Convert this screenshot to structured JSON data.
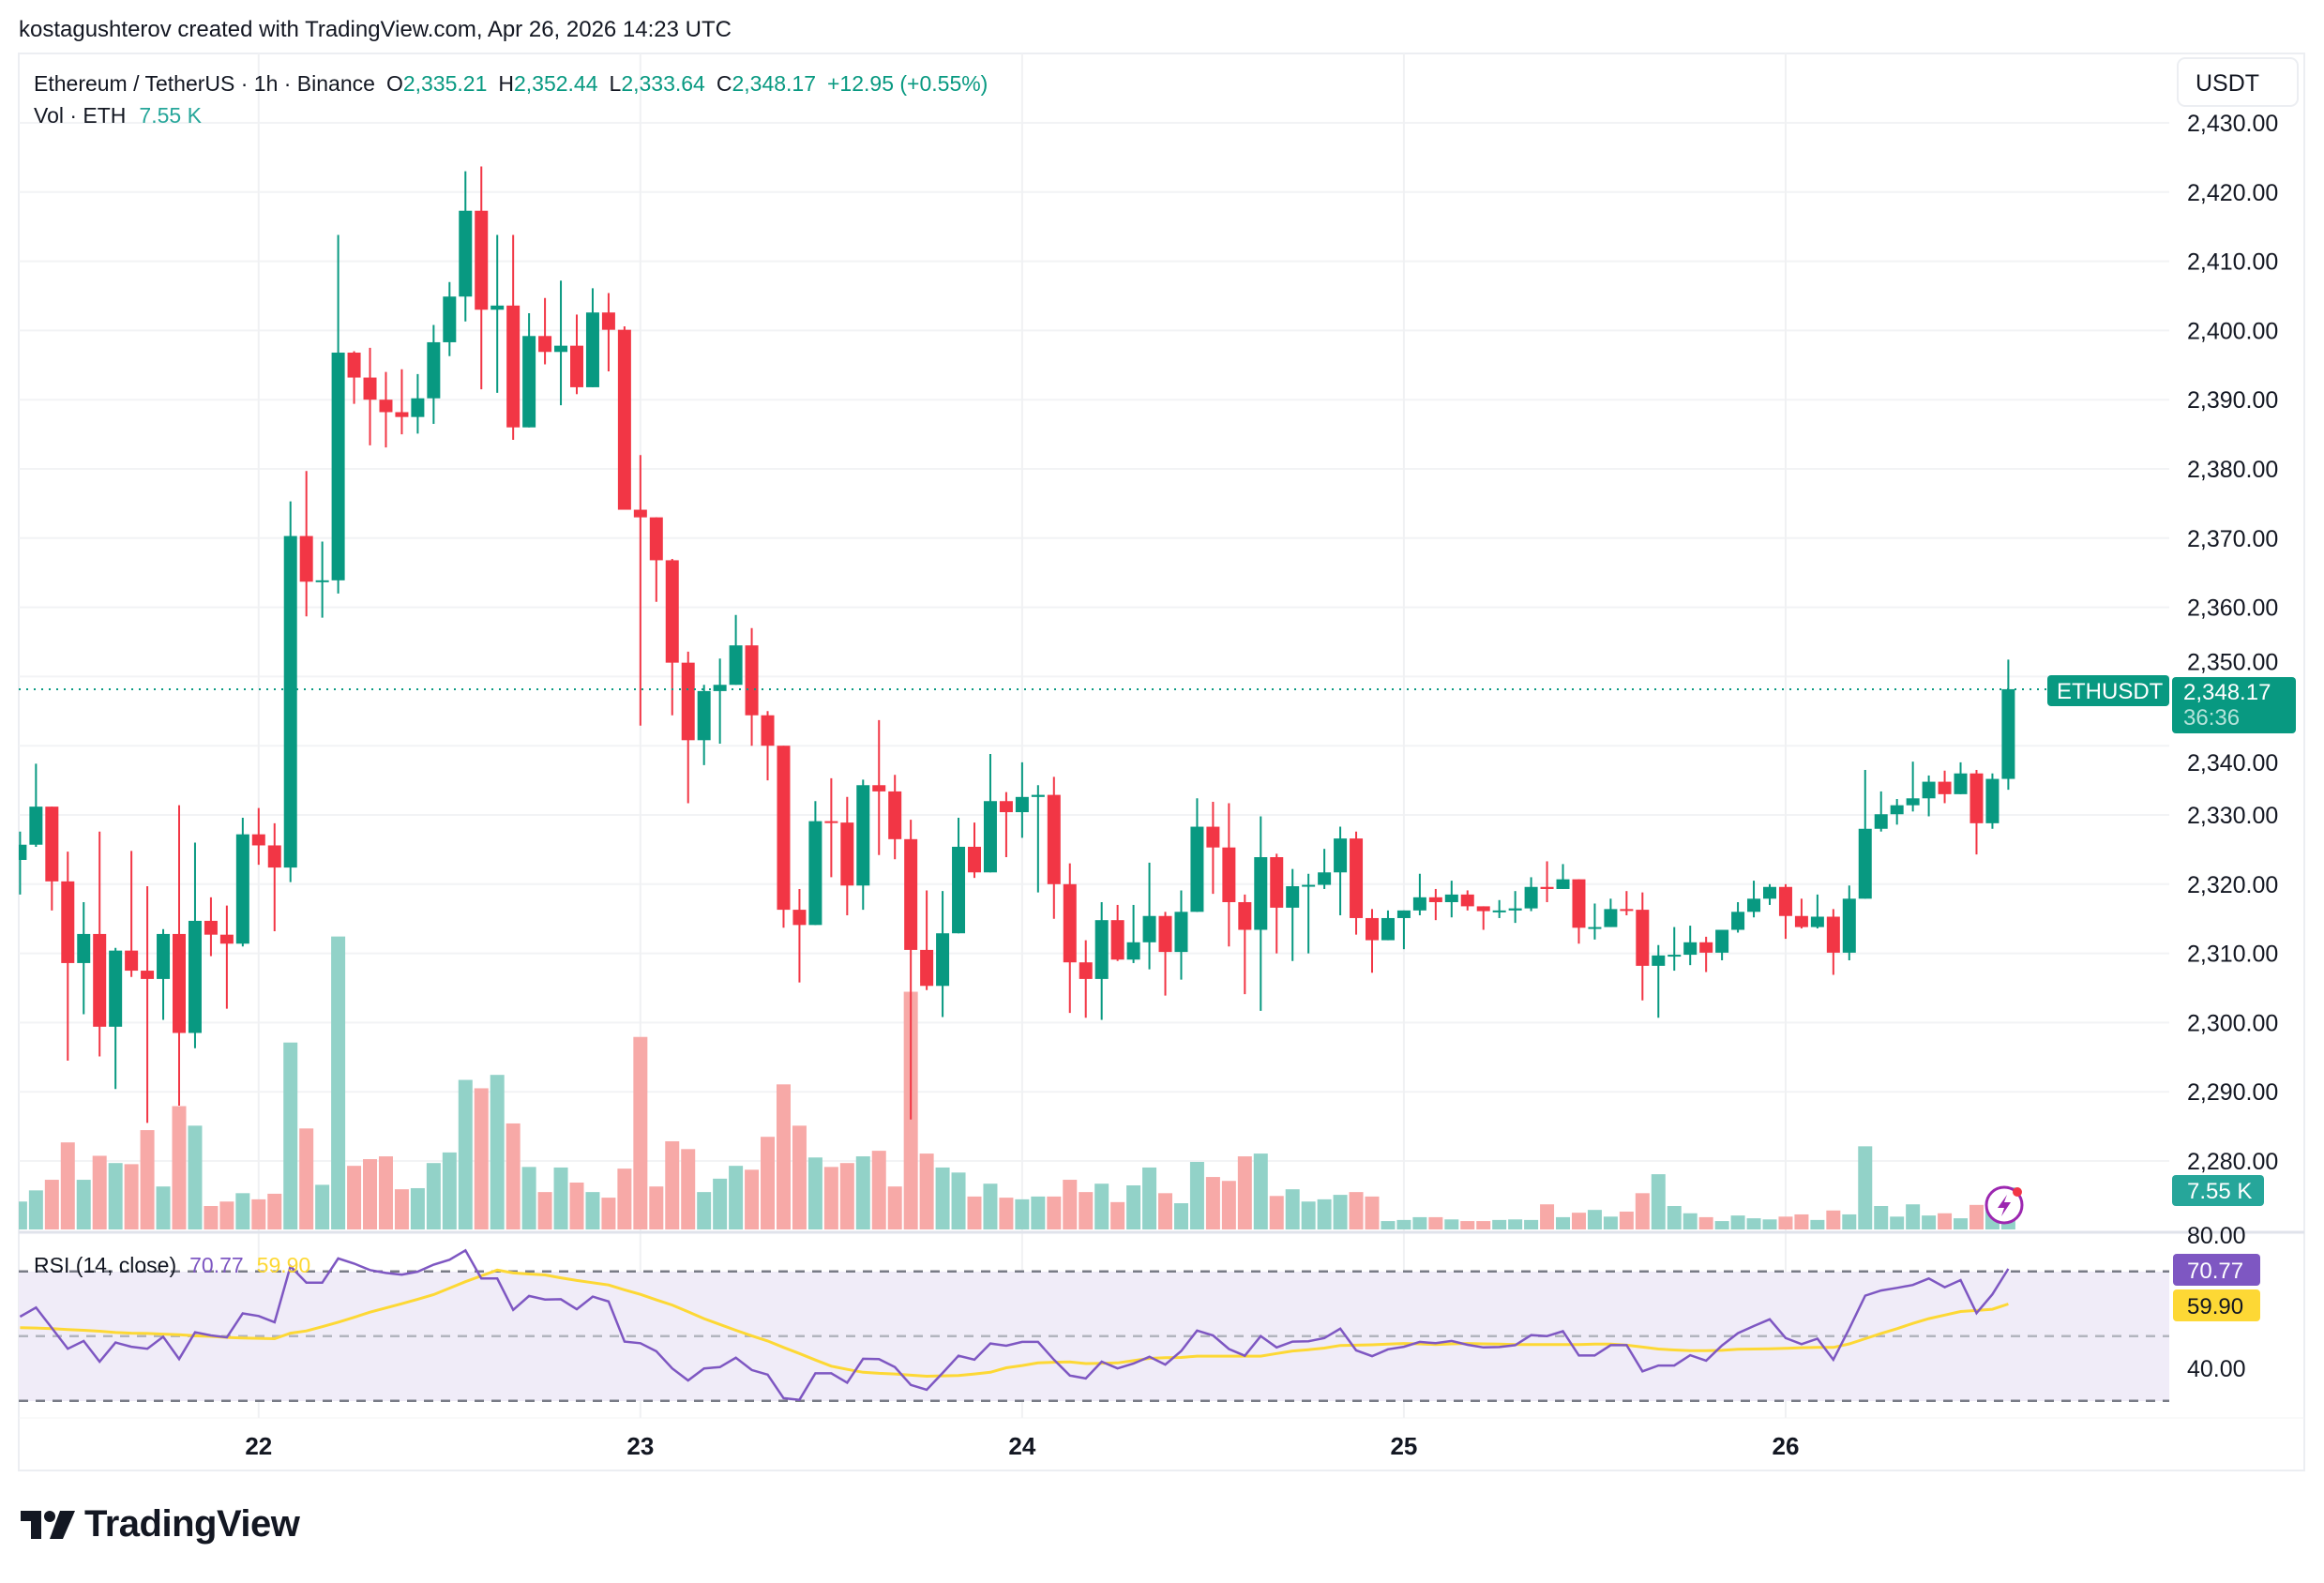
{
  "header": {
    "credit": "kostagushterov created with TradingView.com, Apr 26, 2026 14:23 UTC"
  },
  "legend": {
    "symbol": "Ethereum / TetherUS · 1h · Binance",
    "o_label": "O",
    "o": "2,335.21",
    "h_label": "H",
    "h": "2,352.44",
    "l_label": "L",
    "l": "2,333.64",
    "c_label": "C",
    "c": "2,348.17",
    "change": "+12.95 (+0.55%)",
    "vol_label": "Vol · ETH",
    "vol": "7.55 K"
  },
  "price_axis": {
    "currency": "USDT",
    "labels": [
      "2,430.00",
      "2,420.00",
      "2,410.00",
      "2,400.00",
      "2,390.00",
      "2,380.00",
      "2,370.00",
      "2,360.00",
      "2,350.00",
      "2,340.00",
      "2,330.00",
      "2,320.00",
      "2,310.00",
      "2,300.00",
      "2,290.00",
      "2,280.00"
    ],
    "symbol_tag": "ETHUSDT",
    "last_price": "2,348.17",
    "countdown": "36:36",
    "volume_tag": "7.55 K"
  },
  "rsi": {
    "label": "RSI (14, close)",
    "value": "70.77",
    "ma_value": "59.90",
    "axis_labels": [
      "80.00",
      "40.00"
    ]
  },
  "time_axis": {
    "labels": [
      "22",
      "23",
      "24",
      "25",
      "26"
    ]
  },
  "footer": {
    "logo_text": "TradingView"
  },
  "colors": {
    "up": "#089981",
    "down": "#F23645",
    "vol_up": "#92D2C8",
    "vol_down": "#F7A9A7",
    "rsi": "#7E57C2",
    "rsi_ma": "#FDD835",
    "rsi_band": "#F0ECF8"
  },
  "chart_data": {
    "type": "candlestick",
    "interval": "1h",
    "ylim": [
      2280,
      2430
    ],
    "grid": true,
    "ohlc_fields": [
      "open",
      "high",
      "low",
      "close"
    ],
    "ohlc": [
      [
        2323.5,
        2327.6,
        2318.5,
        2325.7
      ],
      [
        2325.7,
        2337.4,
        2325.4,
        2331.2
      ],
      [
        2331.2,
        2331.2,
        2316.2,
        2320.4
      ],
      [
        2320.4,
        2324.7,
        2294.5,
        2308.6
      ],
      [
        2308.6,
        2317.4,
        2301.2,
        2312.8
      ],
      [
        2312.8,
        2327.6,
        2295.1,
        2299.4
      ],
      [
        2299.4,
        2310.8,
        2290.4,
        2310.4
      ],
      [
        2310.4,
        2324.8,
        2306.6,
        2307.5
      ],
      [
        2307.5,
        2319.7,
        2285.5,
        2306.3
      ],
      [
        2306.3,
        2313.5,
        2300.4,
        2312.8
      ],
      [
        2312.8,
        2331.4,
        2288.0,
        2298.5
      ],
      [
        2298.5,
        2326.0,
        2296.3,
        2314.7
      ],
      [
        2314.7,
        2318.1,
        2309.6,
        2312.7
      ],
      [
        2312.7,
        2316.9,
        2302.0,
        2311.4
      ],
      [
        2311.4,
        2329.6,
        2311.0,
        2327.2
      ],
      [
        2327.2,
        2331.0,
        2322.8,
        2325.6
      ],
      [
        2325.6,
        2328.8,
        2313.2,
        2322.4
      ],
      [
        2322.4,
        2375.3,
        2320.3,
        2370.3
      ],
      [
        2370.3,
        2379.7,
        2358.7,
        2363.7
      ],
      [
        2363.7,
        2369.5,
        2358.5,
        2363.9
      ],
      [
        2363.9,
        2413.8,
        2362.0,
        2396.8
      ],
      [
        2396.8,
        2397.0,
        2389.4,
        2393.2
      ],
      [
        2393.2,
        2397.5,
        2383.4,
        2390.0
      ],
      [
        2390.0,
        2394.0,
        2383.1,
        2388.2
      ],
      [
        2388.2,
        2394.4,
        2385.0,
        2387.5
      ],
      [
        2387.5,
        2393.7,
        2385.1,
        2390.2
      ],
      [
        2390.2,
        2400.8,
        2386.5,
        2398.3
      ],
      [
        2398.3,
        2407.0,
        2396.3,
        2404.9
      ],
      [
        2404.9,
        2423.0,
        2401.3,
        2417.3
      ],
      [
        2417.3,
        2423.7,
        2391.5,
        2403.0
      ],
      [
        2403.0,
        2413.8,
        2391.0,
        2403.6
      ],
      [
        2403.6,
        2413.8,
        2384.2,
        2386.0
      ],
      [
        2386.0,
        2402.5,
        2386.0,
        2399.2
      ],
      [
        2399.2,
        2404.7,
        2395.1,
        2396.9
      ],
      [
        2396.9,
        2407.2,
        2389.2,
        2397.8
      ],
      [
        2397.8,
        2402.3,
        2390.8,
        2391.8
      ],
      [
        2391.8,
        2406.1,
        2391.8,
        2402.6
      ],
      [
        2402.6,
        2405.4,
        2394.1,
        2400.1
      ],
      [
        2400.1,
        2400.6,
        2374.1,
        2374.1
      ],
      [
        2374.1,
        2382.0,
        2342.9,
        2373.0
      ],
      [
        2373.0,
        2373.0,
        2360.8,
        2366.8
      ],
      [
        2366.8,
        2367.0,
        2344.4,
        2352.0
      ],
      [
        2352.0,
        2353.6,
        2331.7,
        2340.8
      ],
      [
        2340.8,
        2348.8,
        2337.2,
        2347.9
      ],
      [
        2347.9,
        2352.6,
        2340.3,
        2348.8
      ],
      [
        2348.8,
        2358.9,
        2348.8,
        2354.5
      ],
      [
        2354.5,
        2357.0,
        2340.0,
        2344.4
      ],
      [
        2344.4,
        2345.0,
        2335.0,
        2340.0
      ],
      [
        2340.0,
        2340.0,
        2313.7,
        2316.3
      ],
      [
        2316.3,
        2319.3,
        2305.8,
        2314.1
      ],
      [
        2314.1,
        2332.0,
        2314.1,
        2329.1
      ],
      [
        2329.1,
        2335.3,
        2321.0,
        2328.9
      ],
      [
        2328.9,
        2332.6,
        2315.5,
        2319.8
      ],
      [
        2319.8,
        2335.1,
        2316.3,
        2334.3
      ],
      [
        2334.3,
        2343.7,
        2324.2,
        2333.4
      ],
      [
        2333.4,
        2335.8,
        2323.6,
        2326.5
      ],
      [
        2326.5,
        2329.3,
        2286.0,
        2310.5
      ],
      [
        2310.5,
        2319.1,
        2304.7,
        2305.3
      ],
      [
        2305.3,
        2319.0,
        2300.8,
        2312.9
      ],
      [
        2312.9,
        2329.6,
        2312.9,
        2325.4
      ],
      [
        2325.4,
        2328.9,
        2320.9,
        2321.7
      ],
      [
        2321.7,
        2338.8,
        2321.7,
        2332.0
      ],
      [
        2332.0,
        2333.3,
        2323.9,
        2330.4
      ],
      [
        2330.4,
        2337.6,
        2326.7,
        2332.6
      ],
      [
        2332.6,
        2334.3,
        2318.8,
        2332.9
      ],
      [
        2332.9,
        2335.5,
        2315.0,
        2320.0
      ],
      [
        2320.0,
        2323.0,
        2301.4,
        2308.7
      ],
      [
        2308.7,
        2311.9,
        2300.7,
        2306.3
      ],
      [
        2306.3,
        2317.4,
        2300.4,
        2314.8
      ],
      [
        2314.8,
        2317.0,
        2308.9,
        2309.1
      ],
      [
        2309.1,
        2317.0,
        2308.6,
        2311.6
      ],
      [
        2311.6,
        2323.1,
        2307.7,
        2315.4
      ],
      [
        2315.4,
        2316.0,
        2303.9,
        2310.2
      ],
      [
        2310.2,
        2319.1,
        2306.2,
        2316.0
      ],
      [
        2316.0,
        2332.4,
        2316.0,
        2328.3
      ],
      [
        2328.3,
        2331.9,
        2318.6,
        2325.3
      ],
      [
        2325.3,
        2331.7,
        2311.0,
        2317.4
      ],
      [
        2317.4,
        2318.5,
        2304.1,
        2313.4
      ],
      [
        2313.4,
        2329.8,
        2301.7,
        2323.9
      ],
      [
        2323.9,
        2324.4,
        2310.0,
        2316.6
      ],
      [
        2316.6,
        2322.2,
        2308.9,
        2319.7
      ],
      [
        2319.7,
        2321.5,
        2310.0,
        2319.9
      ],
      [
        2319.9,
        2325.1,
        2319.3,
        2321.7
      ],
      [
        2321.7,
        2328.3,
        2315.5,
        2326.6
      ],
      [
        2326.6,
        2327.6,
        2312.7,
        2315.1
      ],
      [
        2315.1,
        2316.4,
        2307.2,
        2311.9
      ],
      [
        2311.9,
        2316.2,
        2311.9,
        2315.1
      ],
      [
        2315.1,
        2316.2,
        2310.6,
        2316.2
      ],
      [
        2316.2,
        2321.5,
        2315.5,
        2318.1
      ],
      [
        2318.1,
        2319.3,
        2314.8,
        2317.4
      ],
      [
        2317.4,
        2320.5,
        2315.2,
        2318.5
      ],
      [
        2318.5,
        2319.1,
        2316.2,
        2316.8
      ],
      [
        2316.8,
        2316.8,
        2313.4,
        2316.1
      ],
      [
        2316.1,
        2317.7,
        2315.1,
        2316.2
      ],
      [
        2316.2,
        2319.0,
        2314.4,
        2316.5
      ],
      [
        2316.5,
        2321.0,
        2316.1,
        2319.6
      ],
      [
        2319.6,
        2323.3,
        2317.4,
        2319.3
      ],
      [
        2319.3,
        2322.9,
        2319.3,
        2320.7
      ],
      [
        2320.7,
        2320.7,
        2311.4,
        2313.7
      ],
      [
        2313.7,
        2317.2,
        2312.0,
        2313.8
      ],
      [
        2313.8,
        2317.9,
        2313.8,
        2316.4
      ],
      [
        2316.4,
        2319.0,
        2315.5,
        2316.3
      ],
      [
        2316.3,
        2318.8,
        2303.2,
        2308.2
      ],
      [
        2308.2,
        2311.2,
        2300.7,
        2309.7
      ],
      [
        2309.7,
        2313.8,
        2307.5,
        2309.8
      ],
      [
        2309.8,
        2314.0,
        2308.3,
        2311.6
      ],
      [
        2311.6,
        2312.4,
        2307.3,
        2310.1
      ],
      [
        2310.1,
        2313.4,
        2309.0,
        2313.4
      ],
      [
        2313.4,
        2317.4,
        2313.0,
        2316.0
      ],
      [
        2316.0,
        2320.5,
        2315.2,
        2317.9
      ],
      [
        2317.9,
        2320.0,
        2317.0,
        2319.6
      ],
      [
        2319.6,
        2320.0,
        2312.1,
        2315.4
      ],
      [
        2315.4,
        2317.9,
        2313.6,
        2313.8
      ],
      [
        2313.8,
        2318.5,
        2313.6,
        2315.3
      ],
      [
        2315.3,
        2316.4,
        2306.9,
        2310.1
      ],
      [
        2310.1,
        2319.8,
        2309.0,
        2317.9
      ],
      [
        2317.9,
        2336.5,
        2317.9,
        2328.0
      ],
      [
        2328.0,
        2333.4,
        2327.6,
        2330.1
      ],
      [
        2330.1,
        2332.3,
        2328.6,
        2331.4
      ],
      [
        2331.4,
        2337.7,
        2330.5,
        2332.4
      ],
      [
        2332.4,
        2335.7,
        2329.8,
        2334.8
      ],
      [
        2334.8,
        2336.4,
        2331.7,
        2333.0
      ],
      [
        2333.0,
        2337.6,
        2333.0,
        2336.0
      ],
      [
        2336.0,
        2336.5,
        2324.3,
        2328.8
      ],
      [
        2328.8,
        2336.0,
        2328.0,
        2335.21
      ],
      [
        2335.21,
        2352.44,
        2333.64,
        2348.17
      ]
    ],
    "volume_unit": "K ETH",
    "volume": [
      5.0,
      7.0,
      8.9,
      15.6,
      8.9,
      13.2,
      11.9,
      11.7,
      17.8,
      7.7,
      22.1,
      18.6,
      4.2,
      5.0,
      6.5,
      5.4,
      6.4,
      33.5,
      18.1,
      8.0,
      52.5,
      11.4,
      12.6,
      13.1,
      7.2,
      7.4,
      11.9,
      13.8,
      26.8,
      25.3,
      27.7,
      19.0,
      11.2,
      6.7,
      11.1,
      8.4,
      6.7,
      5.7,
      10.9,
      34.5,
      7.7,
      15.8,
      14.4,
      6.7,
      9.1,
      11.4,
      10.7,
      16.6,
      26.0,
      18.6,
      12.9,
      11.2,
      11.9,
      13.1,
      14.1,
      7.7,
      42.6,
      13.6,
      11.1,
      10.2,
      5.9,
      8.2,
      5.7,
      5.4,
      5.9,
      5.9,
      8.9,
      6.7,
      8.2,
      4.9,
      7.9,
      11.1,
      6.5,
      4.7,
      12.1,
      9.4,
      8.7,
      13.1,
      13.6,
      6.0,
      7.2,
      5.0,
      5.4,
      6.2,
      6.7,
      5.9,
      1.5,
      1.7,
      2.2,
      2.2,
      1.8,
      1.5,
      1.5,
      1.7,
      1.8,
      1.7,
      4.5,
      2.2,
      3.0,
      3.5,
      2.3,
      3.2,
      6.5,
      9.9,
      4.2,
      2.9,
      2.2,
      1.5,
      2.5,
      2.0,
      1.8,
      2.3,
      2.7,
      1.7,
      3.4,
      2.7,
      14.9,
      4.2,
      2.3,
      4.5,
      2.5,
      2.9,
      2.0,
      4.4,
      3.9,
      7.55
    ],
    "rsi_ylim": [
      30,
      80
    ],
    "rsi_levels": [
      70,
      50,
      30
    ],
    "rsi": [
      56.0,
      58.8,
      52.5,
      46.1,
      48.5,
      42.1,
      48.0,
      46.7,
      46.1,
      49.8,
      42.9,
      51.2,
      50.2,
      49.6,
      57.0,
      56.2,
      54.3,
      71.6,
      66.5,
      66.5,
      74.0,
      72.4,
      70.4,
      69.5,
      69.0,
      69.9,
      72.1,
      73.6,
      76.5,
      67.8,
      67.8,
      58.1,
      62.4,
      61.3,
      61.4,
      58.3,
      62.2,
      60.7,
      48.3,
      47.8,
      45.3,
      40.0,
      36.3,
      40.0,
      40.4,
      43.3,
      39.5,
      38.1,
      30.8,
      30.3,
      38.5,
      38.5,
      35.6,
      43.0,
      42.9,
      40.4,
      34.9,
      33.4,
      38.6,
      43.9,
      42.7,
      47.7,
      47.0,
      48.2,
      48.2,
      42.7,
      37.8,
      36.9,
      42.1,
      40.0,
      41.5,
      43.6,
      41.2,
      45.4,
      51.7,
      50.2,
      46.0,
      43.9,
      50.0,
      46.5,
      48.3,
      48.4,
      49.4,
      52.3,
      45.6,
      43.8,
      45.9,
      46.7,
      48.2,
      47.8,
      48.5,
      47.3,
      46.5,
      46.6,
      47.2,
      50.3,
      50.0,
      51.5,
      44.0,
      44.0,
      47.2,
      47.2,
      39.1,
      40.9,
      40.9,
      44.1,
      42.4,
      47.1,
      50.9,
      53.1,
      55.2,
      49.4,
      47.5,
      49.2,
      42.7,
      52.3,
      62.5,
      64.1,
      64.9,
      65.8,
      67.8,
      65.1,
      67.3,
      57.1,
      62.9,
      70.77
    ],
    "rsi_ma": [
      52.6,
      52.5,
      52.3,
      52.0,
      51.8,
      51.5,
      51.1,
      50.9,
      50.8,
      50.6,
      50.4,
      50.1,
      49.9,
      49.6,
      49.4,
      49.3,
      49.2,
      50.9,
      51.6,
      52.9,
      54.3,
      55.8,
      57.4,
      58.7,
      60.0,
      61.4,
      62.8,
      64.8,
      66.8,
      68.6,
      70.4,
      69.5,
      69.2,
      68.9,
      68.0,
      67.2,
      66.5,
      65.8,
      64.3,
      62.9,
      61.2,
      59.6,
      57.5,
      55.4,
      53.6,
      51.8,
      50.1,
      48.5,
      46.5,
      44.6,
      42.6,
      40.7,
      39.7,
      38.8,
      38.5,
      38.3,
      37.9,
      37.6,
      37.7,
      37.8,
      38.3,
      38.8,
      40.2,
      40.9,
      41.7,
      41.9,
      42.0,
      41.5,
      41.6,
      41.7,
      42.4,
      43.1,
      43.3,
      43.4,
      43.8,
      43.8,
      43.8,
      43.8,
      43.8,
      44.6,
      45.4,
      45.8,
      46.3,
      47.1,
      47.2,
      47.3,
      47.5,
      47.7,
      47.6,
      47.4,
      47.6,
      47.7,
      47.6,
      47.5,
      47.4,
      47.4,
      47.4,
      47.4,
      47.4,
      47.5,
      47.5,
      47.2,
      46.6,
      46.0,
      45.7,
      45.5,
      45.5,
      45.6,
      45.9,
      46.0,
      46.1,
      46.2,
      46.4,
      46.5,
      46.5,
      47.6,
      49.2,
      50.8,
      52.3,
      53.9,
      55.4,
      56.5,
      57.6,
      57.9,
      58.3,
      59.9
    ]
  }
}
